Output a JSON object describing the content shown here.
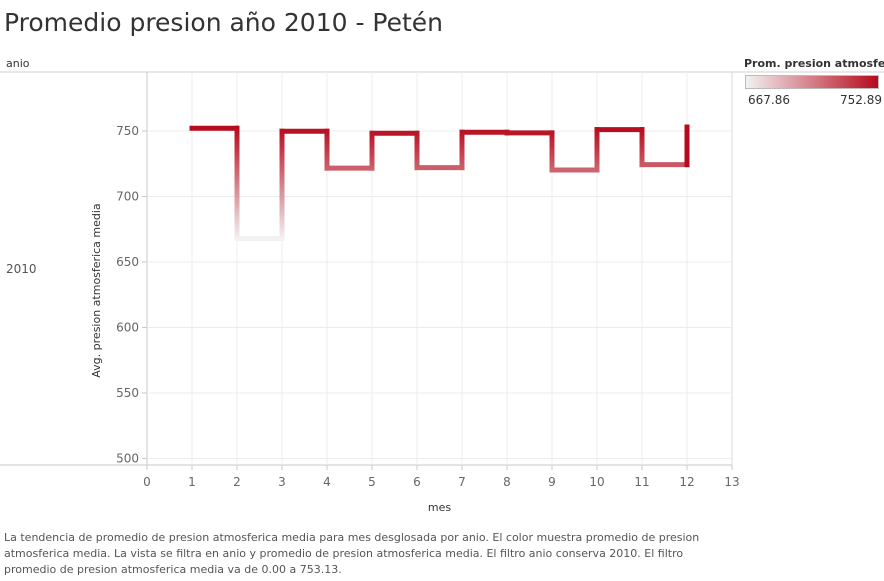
{
  "title": "Promedio presion año 2010 - Petén",
  "row_header": "anio",
  "row_value": "2010",
  "legend": {
    "title": "Prom. presion atmosfer..",
    "min_label": "667.86",
    "max_label": "752.89",
    "color_low": "#f2f2f2",
    "color_high": "#b60a1c"
  },
  "caption": "La tendencia de promedio de presion atmosferica media para mes desglosada por anio.  El color muestra promedio de presion atmosferica media. La vista se filtra en anio y promedio de presion atmosferica media. El filtro anio conserva 2010. El filtro promedio de presion atmosferica media va de 0.00 a 753.13.",
  "chart_data": {
    "type": "line",
    "step": true,
    "title": "Promedio presion año 2010 - Petén",
    "xlabel": "mes",
    "ylabel": "Avg. presion atmosferica media",
    "xlim": [
      0,
      13
    ],
    "ylim": [
      495,
      795
    ],
    "x_ticks": [
      0,
      1,
      2,
      3,
      4,
      5,
      6,
      7,
      8,
      9,
      10,
      11,
      12,
      13
    ],
    "y_ticks": [
      500,
      550,
      600,
      650,
      700,
      750
    ],
    "grid": true,
    "series": [
      {
        "x": [
          1,
          2,
          3,
          4,
          5,
          6,
          7,
          8,
          9,
          10,
          11,
          12
        ],
        "values": [
          752.1,
          667.86,
          749.8,
          721.6,
          748.2,
          722.0,
          749.0,
          748.5,
          720.2,
          751.0,
          724.3,
          752.89
        ]
      }
    ]
  }
}
